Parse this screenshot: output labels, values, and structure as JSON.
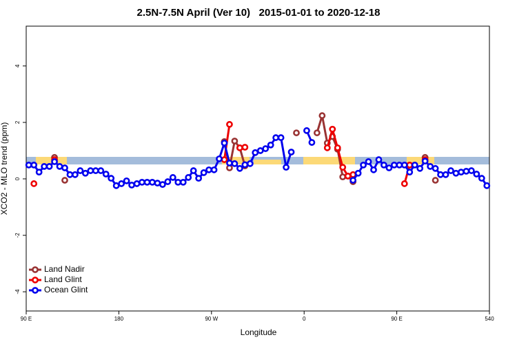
{
  "chart_data": {
    "type": "line",
    "title": "2.5N-7.5N April (Ver 10)   2015-01-01 to 2020-12-18",
    "xlabel": "Longitude",
    "ylabel": "XCO2 - MLO trend (ppm)",
    "xlim": [
      90,
      540
    ],
    "ylim": [
      -4.68,
      5.41
    ],
    "xticks": [
      {
        "value": 90,
        "label": "90 E"
      },
      180,
      {
        "value": 270,
        "label": "90 W"
      },
      {
        "value": 360,
        "label": "0"
      },
      {
        "value": 450,
        "label": "90 E"
      },
      540
    ],
    "yticks": [
      -4,
      -2,
      0,
      2,
      4
    ],
    "legend": "bottom-left",
    "x": [
      92.5,
      97.5,
      102.5,
      107.5,
      112.5,
      117.5,
      122.5,
      127.5,
      132.5,
      137.5,
      142.5,
      147.5,
      152.5,
      157.5,
      162.5,
      167.5,
      172.5,
      177.5,
      182.5,
      187.5,
      192.5,
      197.5,
      202.5,
      207.5,
      212.5,
      217.5,
      222.5,
      227.5,
      232.5,
      237.5,
      242.5,
      247.5,
      252.5,
      257.5,
      262.5,
      267.5,
      272.5,
      277.5,
      282.5,
      287.5,
      292.5,
      297.5,
      302.5,
      307.5,
      312.5,
      317.5,
      322.5,
      327.5,
      332.5,
      337.5,
      342.5,
      347.5,
      352.5,
      357.5,
      362.5,
      367.5,
      372.5,
      377.5,
      382.5,
      387.5,
      392.5,
      397.5,
      402.5,
      407.5,
      412.5,
      417.5,
      422.5,
      427.5,
      432.5,
      437.5,
      442.5,
      447.5,
      452.5,
      457.5,
      462.5,
      467.5,
      472.5,
      477.5,
      482.5,
      487.5,
      492.5,
      497.5,
      502.5,
      507.5,
      512.5,
      517.5,
      522.5,
      527.5,
      532.5,
      537.5
    ],
    "series": [
      {
        "name": "Land Nadir",
        "color": "#993333",
        "values": [
          null,
          null,
          null,
          null,
          null,
          0.76,
          null,
          -0.05,
          null,
          null,
          null,
          null,
          null,
          null,
          null,
          null,
          null,
          null,
          null,
          null,
          null,
          null,
          null,
          null,
          null,
          null,
          null,
          null,
          null,
          null,
          null,
          null,
          null,
          null,
          null,
          null,
          null,
          null,
          1.32,
          0.39,
          1.34,
          1.1,
          0.46,
          null,
          null,
          null,
          null,
          null,
          null,
          null,
          null,
          null,
          1.63,
          null,
          null,
          null,
          1.63,
          2.24,
          1.27,
          1.5,
          1.05,
          0.07,
          0.1,
          -0.1,
          null,
          null,
          null,
          null,
          null,
          null,
          null,
          null,
          null,
          null,
          null,
          null,
          null,
          0.76,
          null,
          -0.05,
          null,
          null,
          null,
          null,
          null,
          null,
          null,
          null,
          null,
          null
        ]
      },
      {
        "name": "Land Glint",
        "color": "#ee0000",
        "values": [
          null,
          -0.17,
          null,
          null,
          null,
          0.68,
          null,
          null,
          null,
          null,
          null,
          null,
          null,
          null,
          null,
          null,
          null,
          null,
          null,
          null,
          null,
          null,
          null,
          null,
          null,
          null,
          null,
          null,
          null,
          null,
          null,
          null,
          null,
          null,
          null,
          null,
          null,
          null,
          0.68,
          1.93,
          null,
          1.1,
          1.12,
          null,
          null,
          null,
          null,
          null,
          null,
          null,
          null,
          null,
          null,
          null,
          null,
          null,
          null,
          null,
          1.1,
          1.76,
          1.1,
          0.41,
          0.1,
          0.15,
          null,
          null,
          null,
          null,
          null,
          null,
          null,
          null,
          null,
          -0.17,
          0.49,
          null,
          null,
          0.68,
          null,
          null,
          null,
          null,
          null,
          null,
          null,
          null,
          null,
          null,
          null,
          null
        ]
      },
      {
        "name": "Ocean Glint",
        "color": "#0000ee",
        "values": [
          0.49,
          0.49,
          0.24,
          0.44,
          0.44,
          0.61,
          0.44,
          0.39,
          0.15,
          0.15,
          0.29,
          0.2,
          0.29,
          0.29,
          0.29,
          0.17,
          0.02,
          -0.24,
          -0.17,
          -0.07,
          -0.22,
          -0.17,
          -0.12,
          -0.12,
          -0.12,
          -0.15,
          -0.2,
          -0.1,
          0.05,
          -0.12,
          -0.12,
          0.05,
          0.29,
          0.02,
          0.22,
          0.32,
          0.32,
          0.71,
          1.27,
          0.56,
          0.54,
          0.37,
          0.5,
          0.54,
          0.93,
          1.0,
          1.07,
          1.2,
          1.46,
          1.46,
          0.41,
          0.95,
          null,
          null,
          1.71,
          1.29,
          null,
          null,
          null,
          null,
          null,
          null,
          null,
          -0.05,
          0.2,
          0.49,
          0.61,
          0.32,
          0.68,
          0.49,
          0.39,
          0.49,
          0.49,
          0.49,
          0.24,
          0.49,
          0.37,
          0.63,
          0.44,
          0.37,
          0.15,
          0.15,
          0.29,
          0.2,
          0.24,
          0.27,
          0.29,
          0.17,
          0.02,
          -0.24
        ]
      }
    ]
  }
}
